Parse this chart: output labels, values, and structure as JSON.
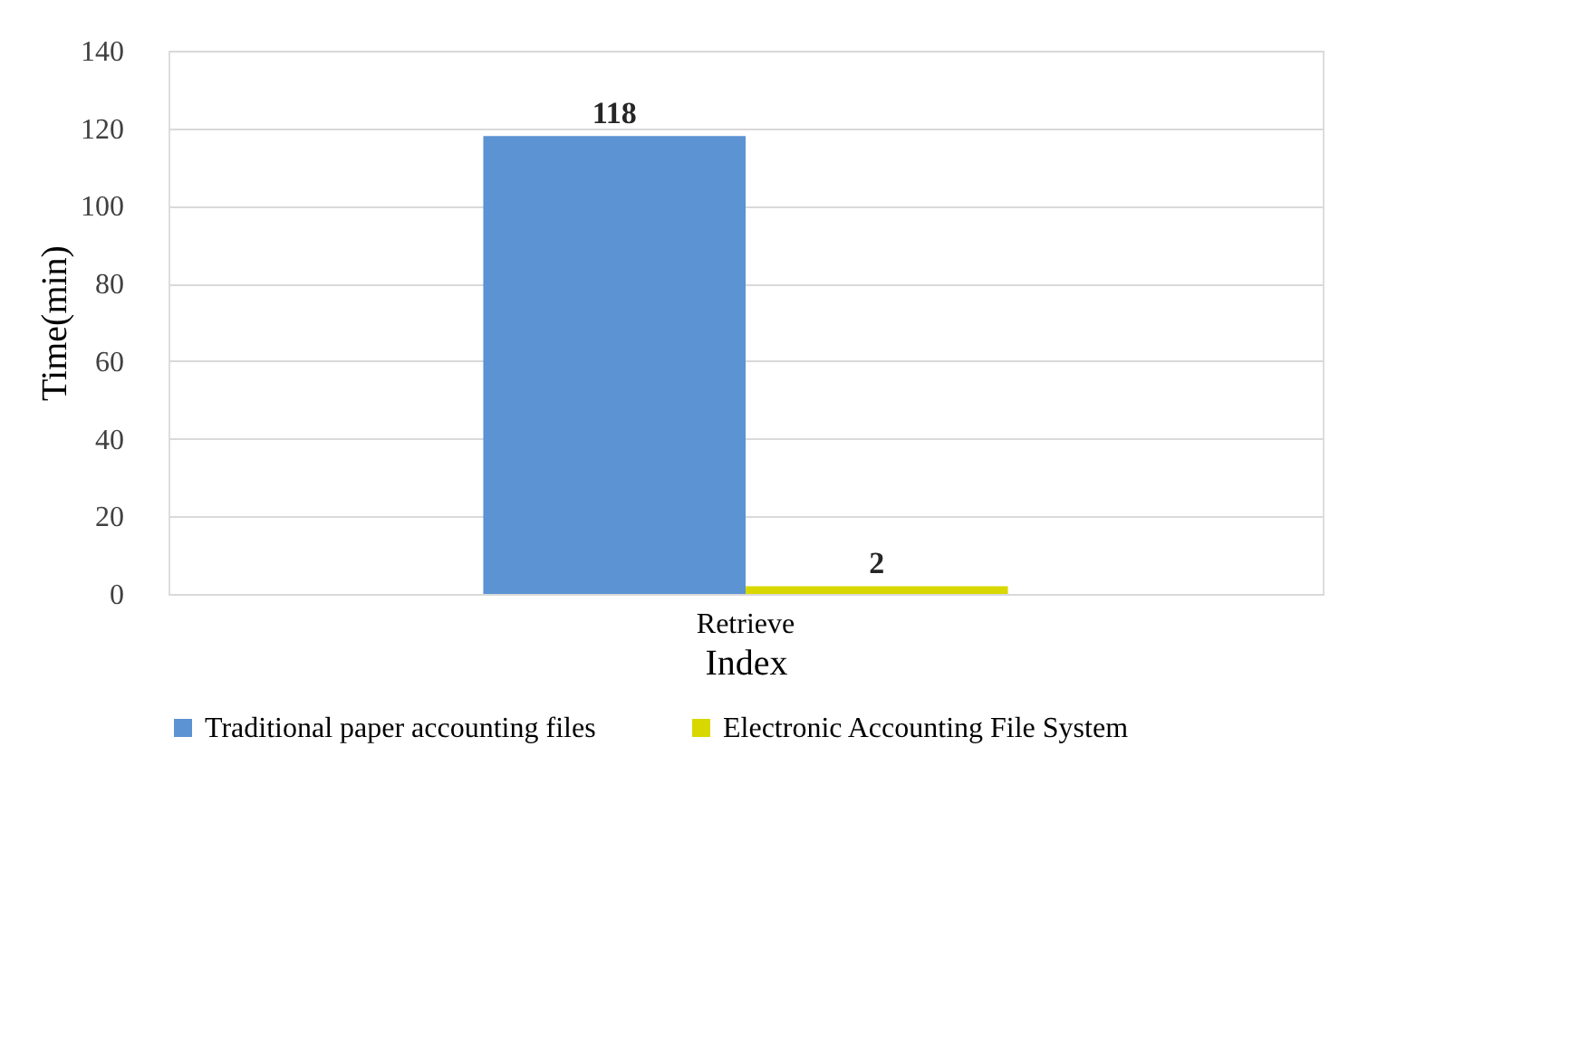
{
  "chart_data": {
    "type": "bar",
    "xlabel": "Index",
    "ylabel": "Time(min)",
    "categories": [
      "Retrieve"
    ],
    "series": [
      {
        "name": "Traditional paper accounting files",
        "color": "#5b93d3",
        "values": [
          118
        ]
      },
      {
        "name": "Electronic Accounting File System",
        "color": "#d8d800",
        "values": [
          2
        ]
      }
    ],
    "ylim": [
      0,
      140
    ],
    "yticks": [
      0,
      20,
      40,
      60,
      80,
      100,
      120,
      140
    ],
    "grid": "y",
    "legend": "bottom",
    "data_labels": true
  }
}
